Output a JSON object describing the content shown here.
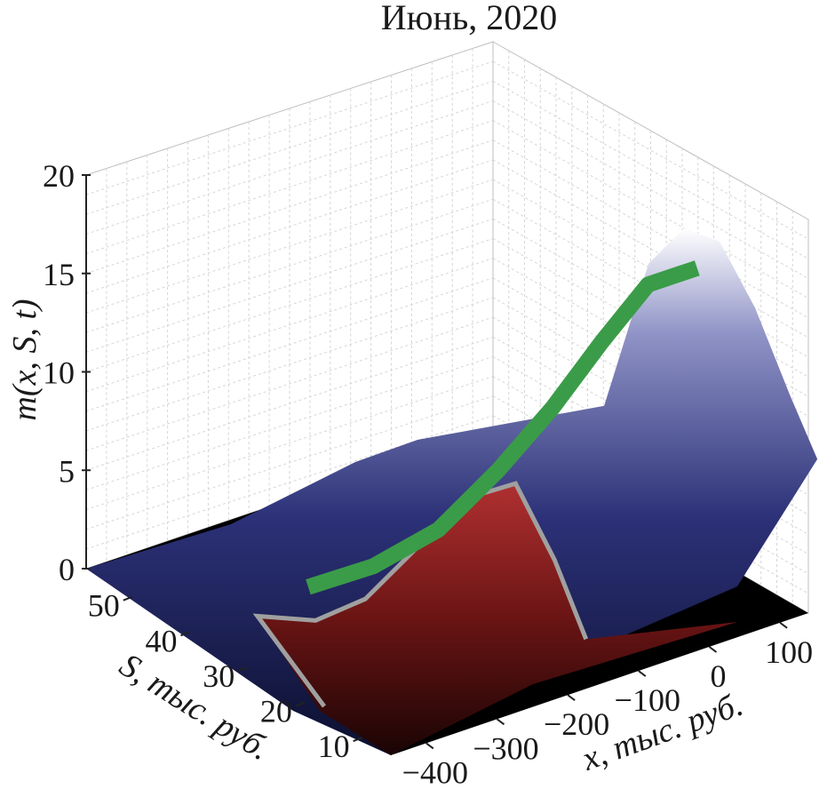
{
  "chart_data": {
    "type": "surface3d",
    "title": "Июнь, 2020",
    "zlabel": "m(x, S, t)",
    "xlabel": "x, тыс. руб.",
    "ylabel": "S, тыс. руб.",
    "zlim": [
      0,
      20
    ],
    "xlim": [
      -450,
      140
    ],
    "ylim": [
      5,
      58
    ],
    "z_ticks": [
      "0",
      "5",
      "10",
      "15",
      "20"
    ],
    "x_ticks": [
      "−400",
      "−300",
      "−200",
      "−100",
      "0",
      "100"
    ],
    "y_ticks": [
      "10",
      "20",
      "30",
      "40",
      "50"
    ],
    "x_tick_values": [
      -400,
      -300,
      -200,
      -100,
      0,
      100
    ],
    "y_tick_values": [
      10,
      20,
      30,
      40,
      50
    ],
    "z_tick_values": [
      0,
      5,
      10,
      15,
      20
    ],
    "grid": true,
    "surface": {
      "peak": {
        "x": -35,
        "S": 54,
        "m": 17.5
      },
      "colors": {
        "low": "#0b0f2e",
        "mid": "#3a3f8a",
        "high": "#ffffff"
      }
    },
    "series": [
      {
        "color": "#3a9c48",
        "points": [
          {
            "x": -250,
            "S": 20,
            "m": 0.3
          },
          {
            "x": -200,
            "S": 25,
            "m": 1.5
          },
          {
            "x": -150,
            "S": 30,
            "m": 3.5
          },
          {
            "x": -110,
            "S": 35,
            "m": 6.5
          },
          {
            "x": -80,
            "S": 40,
            "m": 9.5
          },
          {
            "x": -60,
            "S": 45,
            "m": 12.5
          },
          {
            "x": -45,
            "S": 50,
            "m": 15.0
          },
          {
            "x": -25,
            "S": 55,
            "m": 15.5
          }
        ]
      },
      {
        "color": "#8a1f1f",
        "points": [
          {
            "x": -230,
            "S": 12,
            "m": 0.2
          },
          {
            "x": -150,
            "S": 14,
            "m": 1.0
          },
          {
            "x": -100,
            "S": 17,
            "m": 2.5
          },
          {
            "x": -60,
            "S": 22,
            "m": 5.5
          },
          {
            "x": -35,
            "S": 27,
            "m": 7.5
          },
          {
            "x": -20,
            "S": 31,
            "m": 7.8
          },
          {
            "x": 10,
            "S": 34,
            "m": 4.0
          },
          {
            "x": 40,
            "S": 36,
            "m": 0.2
          }
        ]
      }
    ]
  }
}
